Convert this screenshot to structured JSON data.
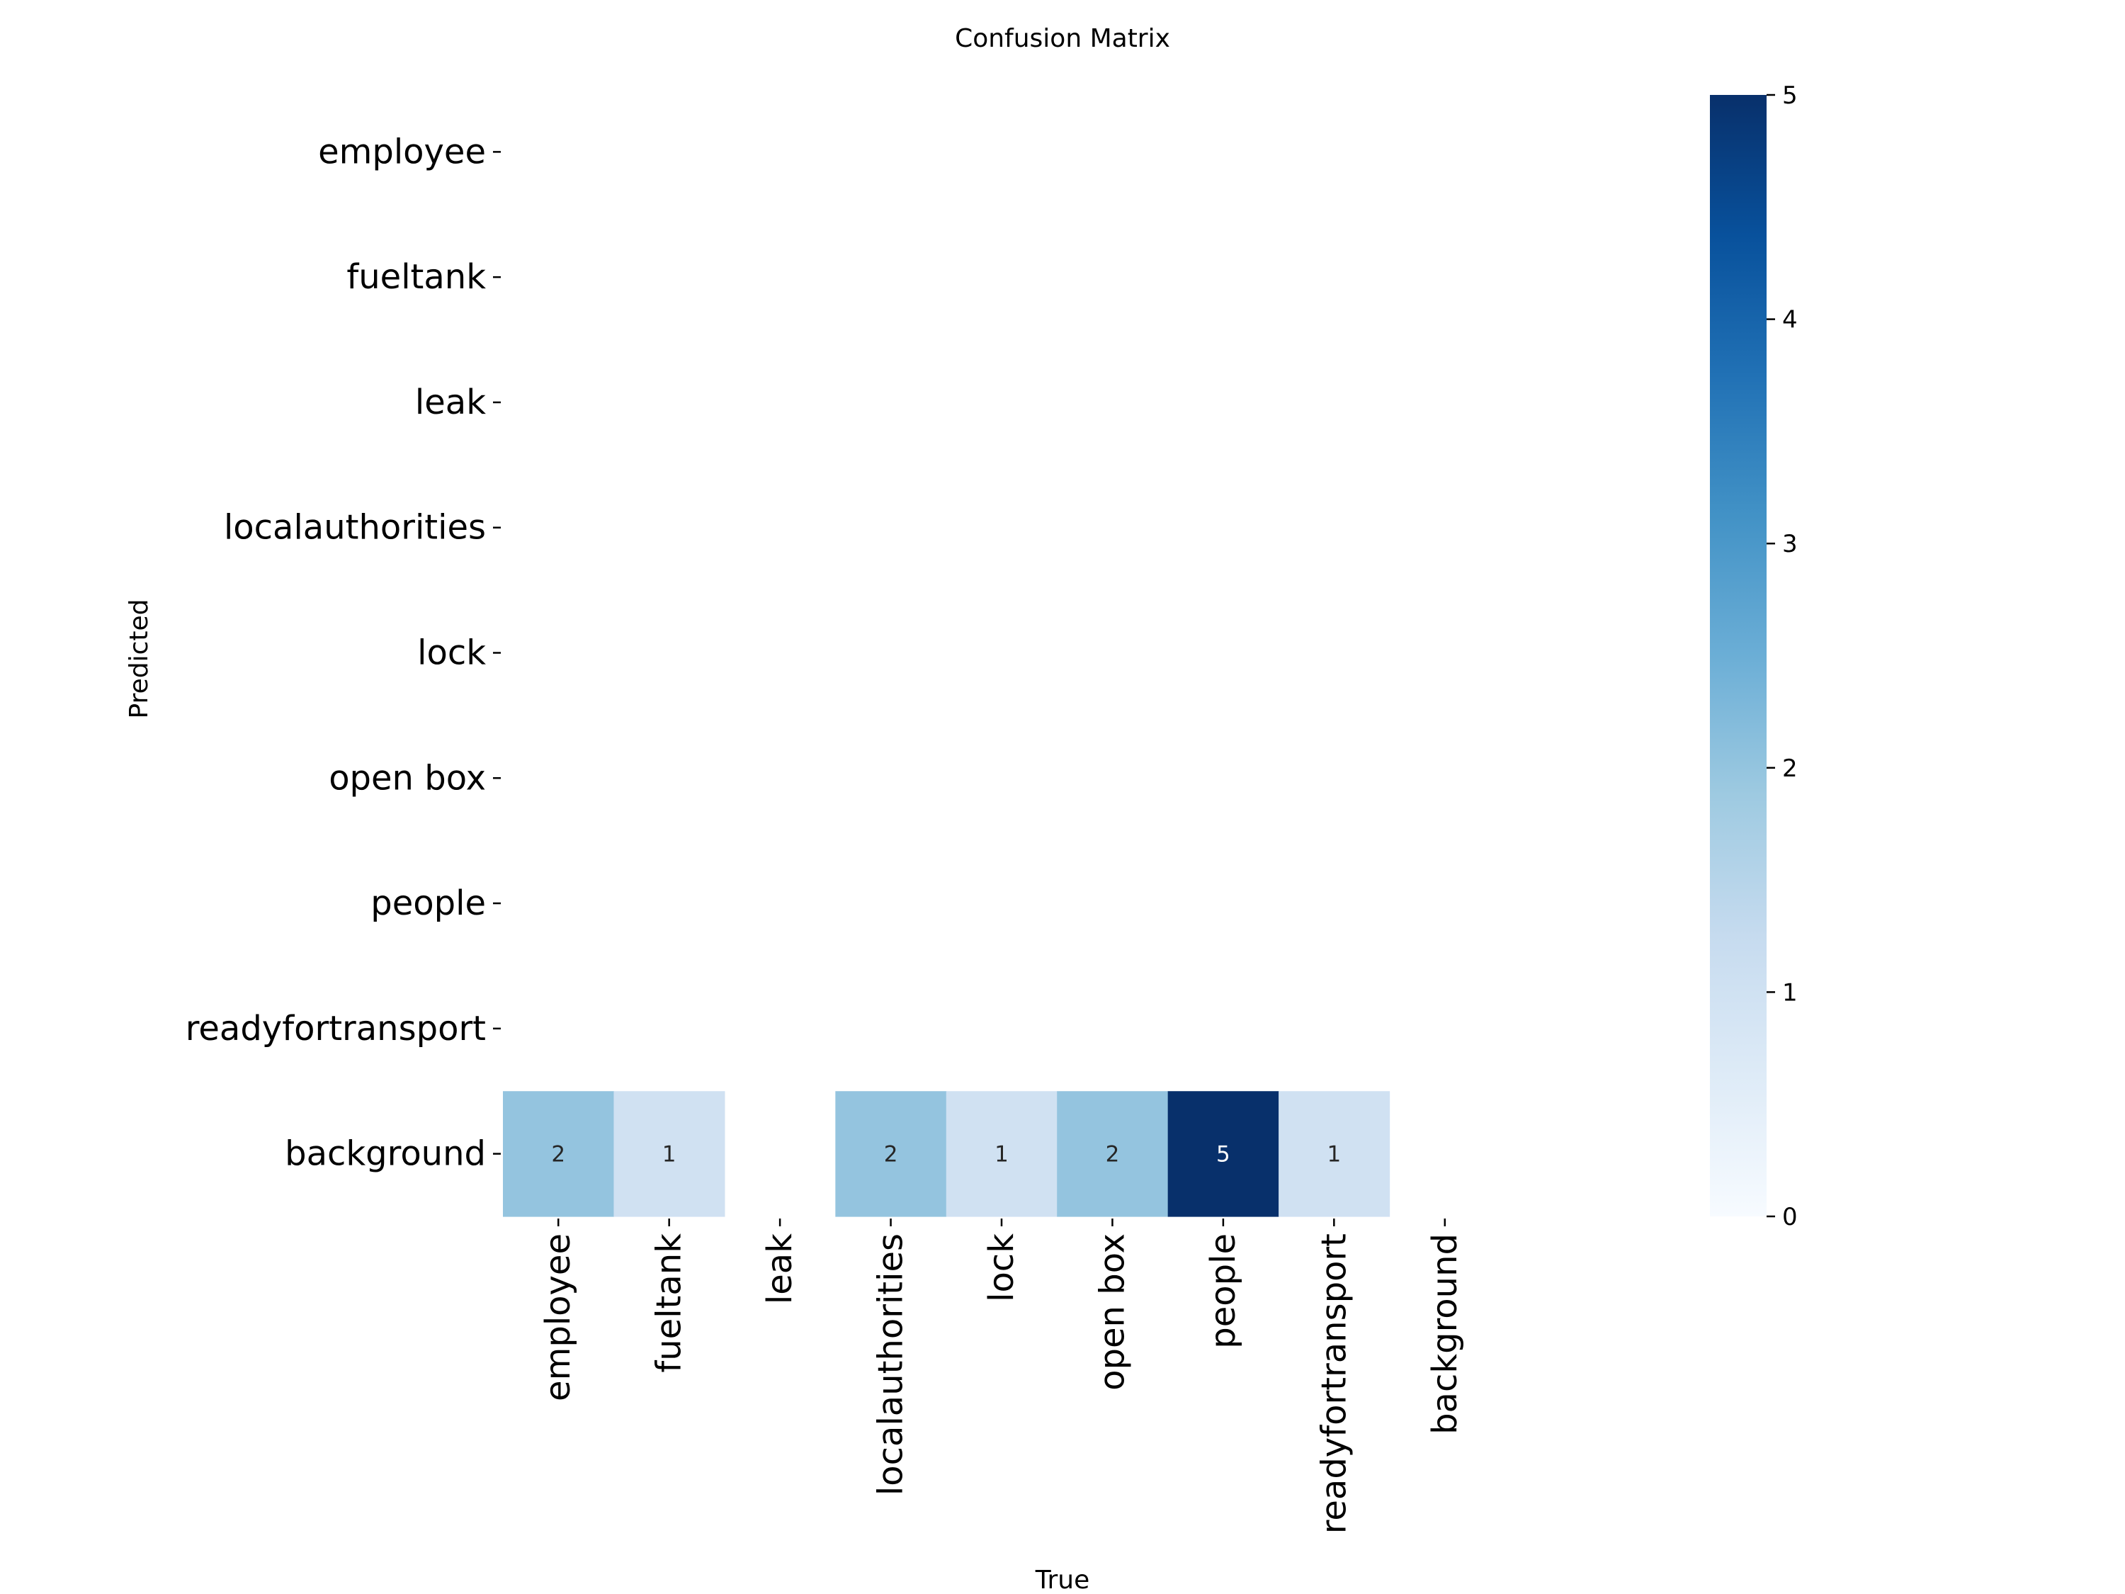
{
  "chart_data": {
    "type": "heatmap",
    "title": "Confusion Matrix",
    "xlabel": "True",
    "ylabel": "Predicted",
    "x_categories": [
      "employee",
      "fueltank",
      "leak",
      "localauthorities",
      "lock",
      "open box",
      "people",
      "readyfortransport",
      "background"
    ],
    "y_categories": [
      "employee",
      "fueltank",
      "leak",
      "localauthorities",
      "lock",
      "open box",
      "people",
      "readyfortransport",
      "background"
    ],
    "matrix": [
      [
        null,
        null,
        null,
        null,
        null,
        null,
        null,
        null,
        null
      ],
      [
        null,
        null,
        null,
        null,
        null,
        null,
        null,
        null,
        null
      ],
      [
        null,
        null,
        null,
        null,
        null,
        null,
        null,
        null,
        null
      ],
      [
        null,
        null,
        null,
        null,
        null,
        null,
        null,
        null,
        null
      ],
      [
        null,
        null,
        null,
        null,
        null,
        null,
        null,
        null,
        null
      ],
      [
        null,
        null,
        null,
        null,
        null,
        null,
        null,
        null,
        null
      ],
      [
        null,
        null,
        null,
        null,
        null,
        null,
        null,
        null,
        null
      ],
      [
        null,
        null,
        null,
        null,
        null,
        null,
        null,
        null,
        null
      ],
      [
        2,
        1,
        null,
        2,
        1,
        2,
        5,
        1,
        null
      ]
    ],
    "colormap": "Blues",
    "vmin": 0,
    "vmax": 5,
    "colorbar_ticks": [
      "0",
      "1",
      "2",
      "3",
      "4",
      "5"
    ],
    "colors": {
      "blues_stops": [
        "#f7fbff",
        "#deebf7",
        "#c6dbef",
        "#9ecae1",
        "#6baed6",
        "#4292c6",
        "#2171b5",
        "#08519c",
        "#08306b"
      ]
    },
    "grid": false,
    "legend": "colorbar-right"
  }
}
